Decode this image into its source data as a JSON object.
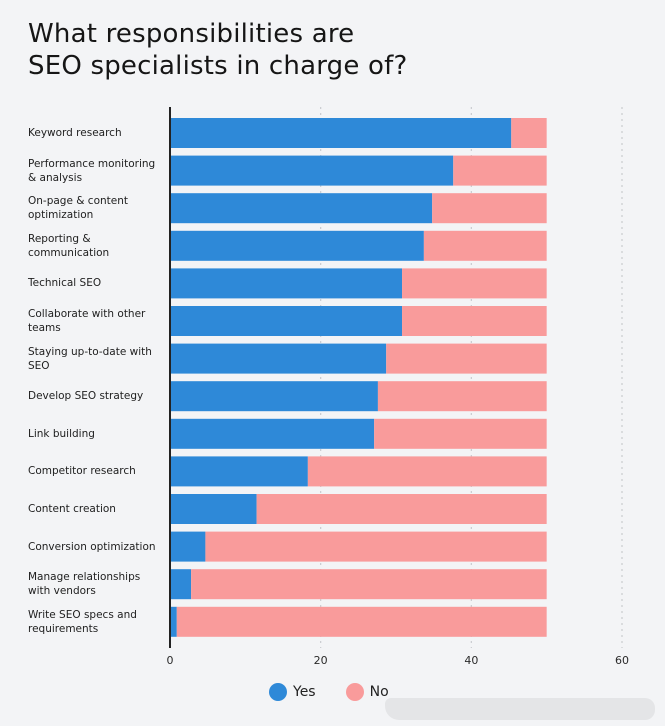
{
  "chart_data": {
    "type": "bar",
    "orientation": "horizontal",
    "stacked": true,
    "title": "What responsibilities are SEO specialists in charge of?",
    "title_lines": [
      "What responsibilities are",
      "SEO specialists in charge of?"
    ],
    "xlabel": "",
    "ylabel": "",
    "xlim": [
      0,
      60
    ],
    "xticks": [
      0,
      20,
      40,
      60
    ],
    "xtick_labels": [
      "0",
      "20",
      "40",
      "60"
    ],
    "grid": "vertical dotted",
    "legend_position": "bottom-center",
    "categories": [
      "Keyword research",
      "Performance monitoring & analysis",
      "On-page & content optimization",
      "Reporting & communication",
      "Technical SEO",
      "Collaborate with other teams",
      "Staying up-to-date with SEO",
      "Develop SEO strategy",
      "Link building",
      "Competitor research",
      "Content creation",
      "Conversion optimization",
      "Manage relationships with vendors",
      "Write SEO specs and requirements"
    ],
    "category_label_lines": [
      [
        "Keyword research"
      ],
      [
        "Performance monitoring",
        "& analysis"
      ],
      [
        "On-page & content",
        "optimization"
      ],
      [
        "Reporting &",
        "communication"
      ],
      [
        "Technical SEO"
      ],
      [
        "Collaborate with other",
        "teams"
      ],
      [
        "Staying up-to-date with",
        "SEO"
      ],
      [
        "Develop SEO strategy"
      ],
      [
        "Link building"
      ],
      [
        "Competitor research"
      ],
      [
        "Content creation"
      ],
      [
        "Conversion optimization"
      ],
      [
        "Manage relationships",
        "with vendors"
      ],
      [
        "Write SEO specs and",
        "requirements"
      ]
    ],
    "series": [
      {
        "name": "Yes",
        "color": "#2e89d8",
        "values": [
          45.3,
          37.6,
          34.8,
          33.7,
          30.8,
          30.8,
          28.7,
          27.6,
          27.1,
          18.3,
          11.5,
          4.7,
          2.8,
          0.9
        ]
      },
      {
        "name": "No",
        "color": "#f99b9b",
        "values": [
          4.7,
          12.4,
          15.2,
          16.3,
          19.2,
          19.2,
          21.3,
          22.4,
          22.9,
          31.7,
          38.5,
          45.3,
          47.2,
          49.1
        ]
      }
    ]
  },
  "legend": {
    "items": [
      {
        "label": "Yes",
        "color": "#2e89d8"
      },
      {
        "label": "No",
        "color": "#f99b9b"
      }
    ]
  },
  "colors": {
    "background": "#f3f4f6",
    "axis": "#222222",
    "grid": "#c9cbcf"
  }
}
